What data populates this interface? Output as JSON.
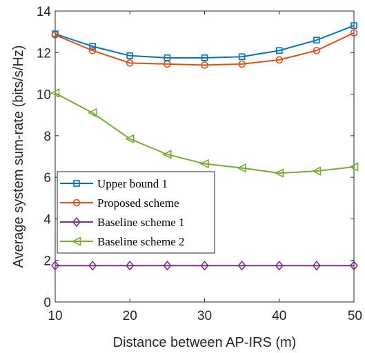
{
  "chart_data": {
    "type": "line",
    "xlabel": "Distance between AP-IRS (m)",
    "ylabel": "Average system sum-rate (bits/s/Hz)",
    "xlim": [
      10,
      50
    ],
    "ylim": [
      0,
      14
    ],
    "xticks": [
      10,
      20,
      30,
      40,
      50
    ],
    "yticks": [
      0,
      2,
      4,
      6,
      8,
      10,
      12,
      14
    ],
    "grid": false,
    "legend_position": "middle-left",
    "x": [
      10,
      15,
      20,
      25,
      30,
      35,
      40,
      45,
      50
    ],
    "series": [
      {
        "name": "Upper bound 1",
        "color": "#0072bd",
        "marker": "square",
        "values": [
          12.9,
          12.3,
          11.85,
          11.75,
          11.75,
          11.8,
          12.1,
          12.6,
          13.3
        ]
      },
      {
        "name": "Proposed scheme",
        "color": "#d95319",
        "marker": "circle",
        "values": [
          12.85,
          12.1,
          11.5,
          11.45,
          11.4,
          11.45,
          11.65,
          12.1,
          12.95
        ]
      },
      {
        "name": "Baseline scheme 1",
        "color": "#7e2f8e",
        "marker": "diamond",
        "values": [
          1.75,
          1.75,
          1.75,
          1.75,
          1.75,
          1.75,
          1.75,
          1.75,
          1.75
        ]
      },
      {
        "name": "Baseline scheme 2",
        "color": "#77ac30",
        "marker": "triangle-left",
        "values": [
          10.05,
          9.1,
          7.85,
          7.1,
          6.65,
          6.45,
          6.2,
          6.3,
          6.5
        ]
      }
    ]
  }
}
